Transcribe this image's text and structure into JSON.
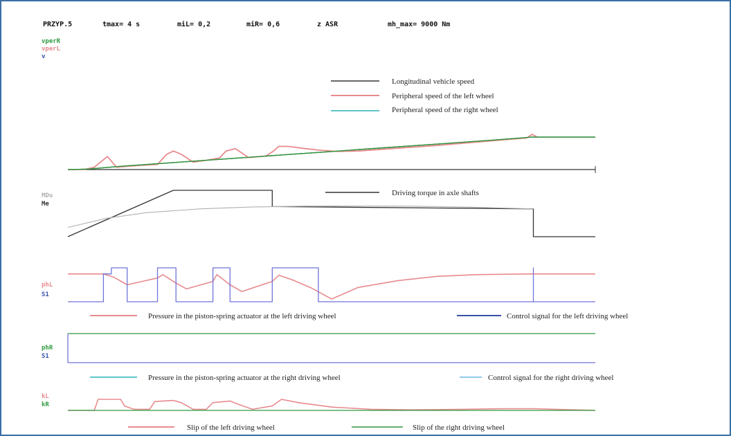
{
  "colors": {
    "border": "#3a6ea5",
    "black": "#333333",
    "grey": "#b0b0b0",
    "green": "#2e9a3e",
    "pink": "#e88a8e",
    "blue": "#6f73d8",
    "cyan": "#29b3b9",
    "navy": "#3552a8",
    "lightblue": "#6fb8e6"
  },
  "header": {
    "items": [
      "PRZYP.5",
      "tmax= 4 s",
      "miL= 0,2",
      "miR= 0,6",
      "z ASR",
      "mh_max= 9000 Nm"
    ]
  },
  "chart_data": [
    {
      "type": "line",
      "panel": "speeds",
      "channel_labels": [
        "vperR",
        "vperL",
        "v"
      ],
      "x_range": [
        0,
        4
      ],
      "y_range": [
        0,
        1
      ],
      "legend": [
        {
          "label": "Longitudinal vehicle speed",
          "color": "#333333"
        },
        {
          "label": "Peripheral speed of the left wheel",
          "color": "#e88a8e"
        },
        {
          "label": "Peripheral speed of the right wheel",
          "color": "#29b3b9"
        }
      ],
      "series": [
        {
          "channel": "v",
          "color": "#333333",
          "x": [
            0,
            0.04,
            0.15,
            0.4,
            0.8,
            1.2,
            1.6,
            2.0,
            2.4,
            2.8,
            3.2,
            3.52,
            3.53,
            4.0
          ],
          "y": [
            0,
            0,
            0.01,
            0.07,
            0.15,
            0.23,
            0.31,
            0.39,
            0.47,
            0.55,
            0.63,
            0.7,
            0.7,
            0.7
          ]
        },
        {
          "channel": "vperL",
          "color": "#e88a8e",
          "x": [
            0,
            0.12,
            0.2,
            0.3,
            0.37,
            0.45,
            0.55,
            0.68,
            0.75,
            0.8,
            0.86,
            0.95,
            1.05,
            1.15,
            1.2,
            1.27,
            1.37,
            1.5,
            1.56,
            1.6,
            1.67,
            1.78,
            1.9,
            2.05,
            2.2,
            2.5,
            2.8,
            3.05,
            3.3,
            3.48,
            3.52,
            3.56
          ],
          "y": [
            0,
            0,
            0.05,
            0.28,
            0.05,
            0.07,
            0.09,
            0.11,
            0.33,
            0.4,
            0.33,
            0.16,
            0.2,
            0.25,
            0.4,
            0.45,
            0.26,
            0.29,
            0.4,
            0.5,
            0.5,
            0.46,
            0.42,
            0.39,
            0.4,
            0.46,
            0.52,
            0.58,
            0.64,
            0.68,
            0.76,
            0.7
          ]
        },
        {
          "channel": "vperR",
          "color": "#2e9a3e",
          "x": [
            0,
            0.04,
            0.15,
            0.4,
            0.8,
            1.2,
            1.6,
            2.0,
            2.4,
            2.8,
            3.2,
            3.52,
            3.53,
            4.0
          ],
          "y": [
            0,
            0,
            0.01,
            0.07,
            0.15,
            0.23,
            0.31,
            0.39,
            0.47,
            0.55,
            0.63,
            0.7,
            0.7,
            0.7
          ]
        }
      ]
    },
    {
      "type": "line",
      "panel": "torque",
      "channel_labels": [
        "MDu",
        "Me"
      ],
      "x_range": [
        0,
        4
      ],
      "y_range": [
        0,
        1
      ],
      "legend": [
        {
          "label": "Driving torque in axle shafts",
          "color": "#333333"
        }
      ],
      "series": [
        {
          "channel": "Me",
          "color": "#333333",
          "x": [
            0,
            0.8,
            1.55,
            1.55,
            3.53,
            3.53,
            4.0
          ],
          "y": [
            0,
            1,
            1,
            0.65,
            0.6,
            0,
            0
          ]
        },
        {
          "channel": "MDu",
          "color": "#b0b0b0",
          "x": [
            0,
            0.3,
            0.6,
            1.0,
            1.4,
            1.8,
            2.2,
            2.6,
            3.0,
            3.53
          ],
          "y": [
            0.2,
            0.4,
            0.52,
            0.6,
            0.64,
            0.66,
            0.66,
            0.66,
            0.64,
            0.6
          ]
        }
      ]
    },
    {
      "type": "line",
      "panel": "left-actuator",
      "channel_labels": [
        "phL",
        "S1"
      ],
      "x_range": [
        0,
        4
      ],
      "y_range": [
        0,
        1
      ],
      "legend": [
        {
          "label": "Pressure in the piston-spring actuator at the left driving wheel",
          "color": "#e88a8e"
        },
        {
          "label": "Control signal for the left driving wheel",
          "color": "#3552a8"
        }
      ],
      "series": [
        {
          "channel": "phL",
          "color": "#e88a8e",
          "x": [
            0,
            0.27,
            0.35,
            0.45,
            0.68,
            0.72,
            0.82,
            0.9,
            1.1,
            1.13,
            1.23,
            1.32,
            1.55,
            1.6,
            1.7,
            1.85,
            2.0,
            2.2,
            2.5,
            2.8,
            3.1,
            3.5,
            4.0
          ],
          "y": [
            0.82,
            0.82,
            0.72,
            0.5,
            0.7,
            0.8,
            0.55,
            0.38,
            0.6,
            0.8,
            0.5,
            0.3,
            0.6,
            0.78,
            0.65,
            0.4,
            0.08,
            0.42,
            0.62,
            0.75,
            0.8,
            0.82,
            0.82
          ]
        },
        {
          "channel": "S1",
          "color": "#6f73d8",
          "x": [
            0,
            0.27,
            0.27,
            0.33,
            0.33,
            0.45,
            0.45,
            0.68,
            0.68,
            0.82,
            0.82,
            1.1,
            1.1,
            1.23,
            1.23,
            1.55,
            1.55,
            1.9,
            1.9,
            3.53,
            3.53,
            3.53,
            4.0
          ],
          "y": [
            0,
            0,
            0.82,
            0.82,
            1,
            1,
            0,
            0,
            1,
            1,
            0,
            0,
            1,
            1,
            0,
            0,
            1,
            1,
            0,
            0,
            1,
            0,
            0
          ]
        }
      ]
    },
    {
      "type": "line",
      "panel": "right-actuator",
      "channel_labels": [
        "phR",
        "S1"
      ],
      "x_range": [
        0,
        4
      ],
      "y_range": [
        0,
        1
      ],
      "legend": [
        {
          "label": "Pressure in the piston-spring actuator at the right driving wheel",
          "color": "#29b3b9"
        },
        {
          "label": "Control signal for the right driving wheel",
          "color": "#6fb8e6"
        }
      ],
      "series": [
        {
          "channel": "phR",
          "color": "#2e9a3e",
          "x": [
            0,
            4.0
          ],
          "y": [
            1,
            1
          ]
        },
        {
          "channel": "S1",
          "color": "#6f73d8",
          "x": [
            0,
            4.0
          ],
          "y": [
            0,
            0
          ]
        }
      ]
    },
    {
      "type": "line",
      "panel": "slip",
      "channel_labels": [
        "kL",
        "kR"
      ],
      "x_range": [
        0,
        4
      ],
      "y_range": [
        0,
        1
      ],
      "legend": [
        {
          "label": "Slip of the left driving wheel",
          "color": "#e88a8e"
        },
        {
          "label": "Slip of the right driving wheel",
          "color": "#2e9a3e"
        }
      ],
      "series": [
        {
          "channel": "kL",
          "color": "#e88a8e",
          "x": [
            0,
            0.2,
            0.23,
            0.4,
            0.43,
            0.5,
            0.62,
            0.66,
            0.8,
            0.86,
            0.95,
            1.05,
            1.1,
            1.23,
            1.28,
            1.4,
            1.55,
            1.62,
            1.75,
            2.0,
            2.3,
            2.6,
            3.0,
            3.3,
            3.53,
            4.0
          ],
          "y": [
            0,
            0,
            1,
            1,
            0.4,
            0.1,
            0.1,
            0.8,
            0.9,
            0.7,
            0.1,
            0.1,
            0.7,
            0.85,
            0.6,
            0.1,
            0.4,
            1.0,
            0.7,
            0.3,
            0.1,
            0.05,
            0.1,
            0.15,
            0.15,
            0
          ]
        },
        {
          "channel": "kR",
          "color": "#2e9a3e",
          "x": [
            0,
            4.0
          ],
          "y": [
            0,
            0
          ]
        }
      ]
    }
  ]
}
